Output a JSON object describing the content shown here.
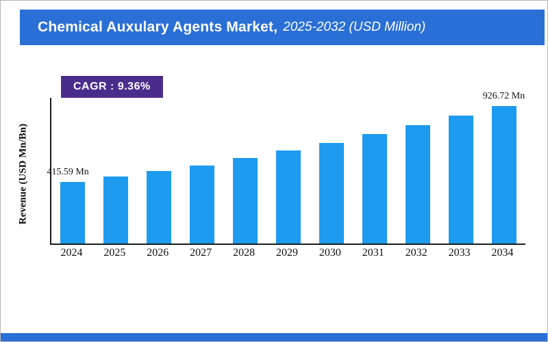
{
  "header": {
    "title": "Chemical Auxulary Agents Market,",
    "subtitle": "2025-2032 (USD Million)",
    "bg_color": "#2a6fd6"
  },
  "badge": {
    "label": "CAGR : 9.36%",
    "bg_color": "#4a2d8b"
  },
  "chart_data": {
    "type": "bar",
    "title": "Chemical Auxulary Agents Market, 2025-2032 (USD Million)",
    "categories": [
      "2024",
      "2025",
      "2026",
      "2027",
      "2028",
      "2029",
      "2030",
      "2031",
      "2032",
      "2033",
      "2034"
    ],
    "values": [
      415.59,
      452.5,
      489.6,
      526.7,
      575.4,
      625.8,
      676.1,
      735.2,
      794.8,
      858.7,
      926.72
    ],
    "ylabel": "Revenue (USD Mn/Bn)",
    "xlabel": "",
    "ylim": [
      0,
      980
    ],
    "grid": false,
    "legend": false,
    "bar_color": "#1d9bf0",
    "annotations": [
      {
        "index": 0,
        "text": "415.59 Mn"
      },
      {
        "index": 10,
        "text": "926.72 Mn"
      }
    ]
  }
}
